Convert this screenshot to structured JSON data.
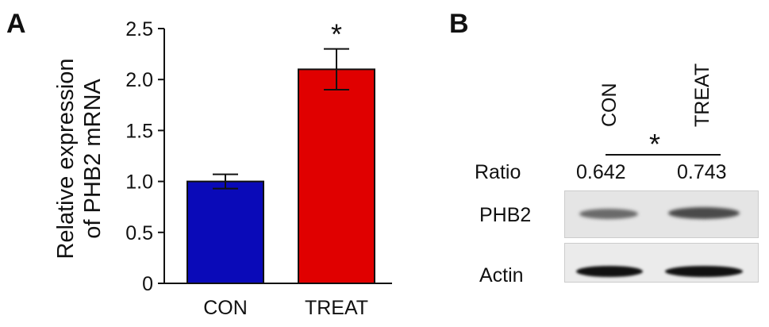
{
  "panels": {
    "a_label": "A",
    "b_label": "B"
  },
  "chart_data": {
    "type": "bar",
    "categories": [
      "CON",
      "TREAT"
    ],
    "values": [
      1.0,
      2.1
    ],
    "errors": [
      0.07,
      0.2
    ],
    "colors": [
      "#0a0ab8",
      "#e00000"
    ],
    "ylabel_line1": "Relative expression",
    "ylabel_line2": "of PHB2 mRNA",
    "ylim": [
      0,
      2.5
    ],
    "yticks": [
      "0",
      "0.5",
      "1.0",
      "1.5",
      "2.0",
      "2.5"
    ],
    "significance": [
      "",
      "*"
    ]
  },
  "blot": {
    "lanes": [
      "CON",
      "TREAT"
    ],
    "significance": "*",
    "ratio_label": "Ratio",
    "ratios": [
      "0.642",
      "0.743"
    ],
    "rows": [
      "PHB2",
      "Actin"
    ]
  }
}
